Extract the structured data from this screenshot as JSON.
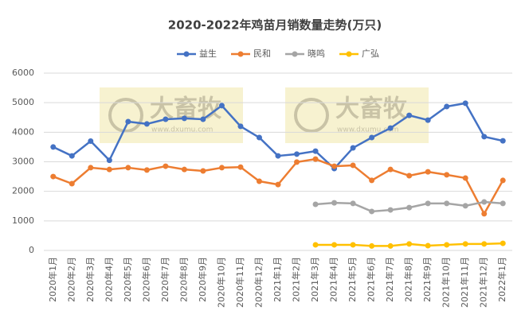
{
  "chart_data": {
    "type": "line",
    "title": "2020-2022年鸡苗月销数量走势(万只)",
    "categories": [
      "2020年1月",
      "2020年2月",
      "2020年3月",
      "2020年4月",
      "2020年5月",
      "2020年6月",
      "2020年7月",
      "2020年8月",
      "2020年9月",
      "2020年10月",
      "2020年11月",
      "2020年12月",
      "2021年1月",
      "2021年2月",
      "2021年3月",
      "2021年4月",
      "2021年5月",
      "2021年6月",
      "2021年7月",
      "2021年8月",
      "2021年9月",
      "2021年10月",
      "2021年11月",
      "2021年12月",
      "2022年1月"
    ],
    "series": [
      {
        "name": "益生",
        "color": "#4472c4",
        "values": [
          3500,
          3200,
          3700,
          3050,
          4360,
          4280,
          4440,
          4470,
          4440,
          4900,
          4200,
          3820,
          3200,
          3260,
          3360,
          2770,
          3470,
          3820,
          4140,
          4570,
          4410,
          4870,
          4980,
          3850,
          3710
        ]
      },
      {
        "name": "民和",
        "color": "#ed7d31",
        "values": [
          2500,
          2260,
          2800,
          2740,
          2800,
          2720,
          2850,
          2740,
          2690,
          2800,
          2820,
          2340,
          2230,
          2990,
          3090,
          2850,
          2880,
          2370,
          2740,
          2530,
          2660,
          2560,
          2450,
          1240,
          2370
        ]
      },
      {
        "name": "晓鸣",
        "color": "#a5a5a5",
        "values": [
          null,
          null,
          null,
          null,
          null,
          null,
          null,
          null,
          null,
          null,
          null,
          null,
          null,
          null,
          1560,
          1610,
          1590,
          1320,
          1370,
          1450,
          1590,
          1590,
          1510,
          1640,
          1590
        ]
      },
      {
        "name": "广弘",
        "color": "#ffc000",
        "values": [
          null,
          null,
          null,
          null,
          null,
          null,
          null,
          null,
          null,
          null,
          null,
          null,
          null,
          null,
          190,
          190,
          190,
          150,
          150,
          220,
          160,
          190,
          220,
          220,
          240
        ]
      }
    ],
    "ylim": [
      0,
      6000
    ],
    "yticks": [
      0,
      1000,
      2000,
      3000,
      4000,
      5000,
      6000
    ],
    "grid": true,
    "legend": "top",
    "watermark": {
      "brand": "大畜牧",
      "url": "www.dxumu.com"
    }
  }
}
